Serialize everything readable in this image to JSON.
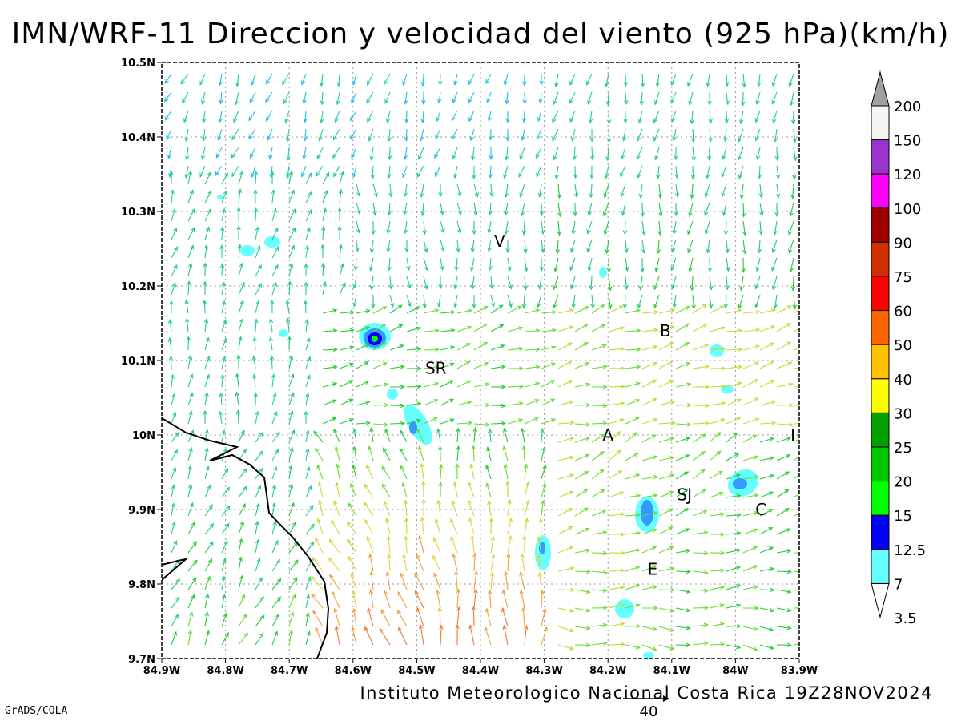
{
  "title": "IMN/WRF-11 Direccion y velocidad del viento (925 hPa)(km/h)",
  "footer": {
    "institution": "Instituto Meteorologico Nacional Costa Rica",
    "timestamp": "19Z28NOV2024",
    "software": "GrADS/COLA",
    "reference_vector_label": "40"
  },
  "chart_data": {
    "type": "vector-field",
    "lon_ticks": [
      "84.9W",
      "84.8W",
      "84.7W",
      "84.6W",
      "84.5W",
      "84.4W",
      "84.3W",
      "84.2W",
      "84.1W",
      "84W",
      "83.9W"
    ],
    "lat_ticks": [
      "10.5N",
      "10.4N",
      "10.3N",
      "10.2N",
      "10.1N",
      "10N",
      "9.9N",
      "9.8N",
      "9.7N"
    ],
    "lon_range": [
      -84.9,
      -83.9
    ],
    "lat_range": [
      9.7,
      10.5
    ],
    "grid": true,
    "places": [
      {
        "label": "V",
        "lon": -84.37,
        "lat": 10.26
      },
      {
        "label": "SR",
        "lon": -84.47,
        "lat": 10.09
      },
      {
        "label": "B",
        "lon": -84.11,
        "lat": 10.14
      },
      {
        "label": "A",
        "lon": -84.2,
        "lat": 10.0
      },
      {
        "label": "I",
        "lon": -83.91,
        "lat": 10.0
      },
      {
        "label": "SJ",
        "lon": -84.08,
        "lat": 9.92
      },
      {
        "label": "C",
        "lon": -83.96,
        "lat": 9.9
      },
      {
        "label": "E",
        "lon": -84.13,
        "lat": 9.82
      }
    ],
    "colorbar": {
      "levels": [
        "200",
        "150",
        "120",
        "100",
        "90",
        "75",
        "60",
        "50",
        "40",
        "30",
        "25",
        "20",
        "15",
        "12.5",
        "7",
        "3.5"
      ],
      "colors": [
        "#a0a0a0",
        "#f5f5f5",
        "#9a32cd",
        "#ff00ff",
        "#a00000",
        "#d03000",
        "#ff0000",
        "#ff6600",
        "#ffc000",
        "#ffff00",
        "#00a000",
        "#00c800",
        "#00ff00",
        "#0000ff",
        "#3399ff",
        "#66ffff"
      ]
    },
    "reference_vector": 40
  }
}
